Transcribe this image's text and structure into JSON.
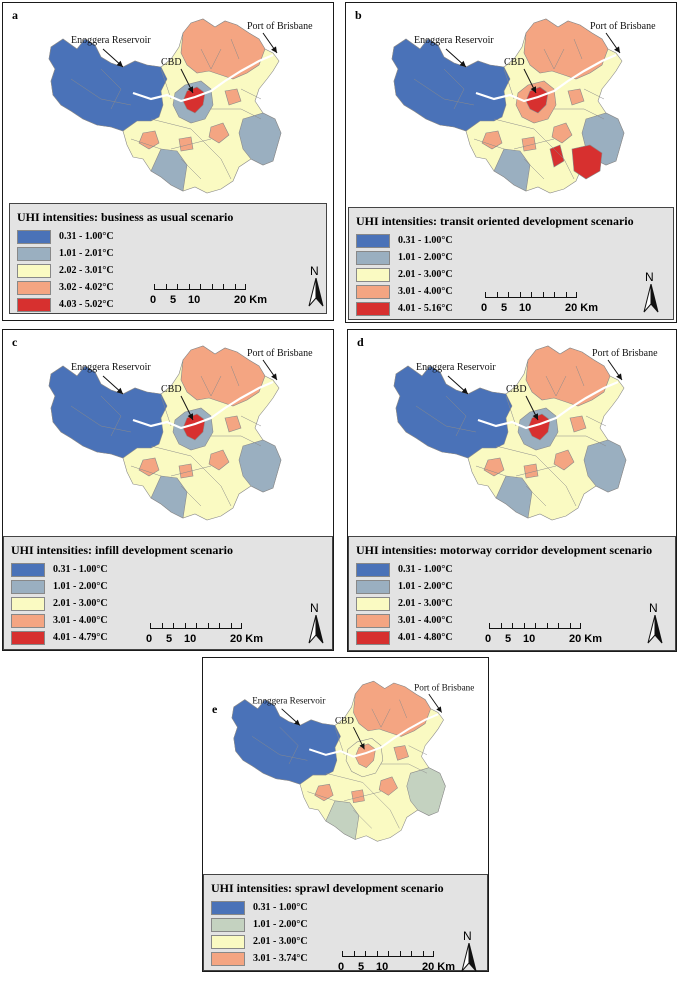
{
  "annotations": {
    "reservoir": "Enoggera Reservoir",
    "cbd": "CBD",
    "port": "Port of Brisbane"
  },
  "scale": {
    "labels": [
      "0",
      "5",
      "10",
      "20 Km"
    ]
  },
  "north_label": "N",
  "colors": {
    "class1": "#4a72b8",
    "class2": "#9aafc0",
    "class2_sprawl": "#c4d2c0",
    "class3": "#fafac2",
    "class4": "#f4a582",
    "class5": "#d7302f",
    "boundary": "#8a8a8a"
  },
  "panels": [
    {
      "letter": "a",
      "title": "UHI intensities: business as usual scenario",
      "legend": [
        {
          "range": "0.31 - 1.00°C",
          "color": "#4a72b8"
        },
        {
          "range": "1.01 - 2.01°C",
          "color": "#9aafc0"
        },
        {
          "range": "2.02 - 3.01°C",
          "color": "#fafac2"
        },
        {
          "range": "3.02 - 4.02°C",
          "color": "#f4a582"
        },
        {
          "range": "4.03 - 5.02°C",
          "color": "#d7302f"
        }
      ]
    },
    {
      "letter": "b",
      "title": "UHI intensities: transit oriented development scenario",
      "legend": [
        {
          "range": "0.31 - 1.00°C",
          "color": "#4a72b8"
        },
        {
          "range": "1.01 - 2.00°C",
          "color": "#9aafc0"
        },
        {
          "range": "2.01 - 3.00°C",
          "color": "#fafac2"
        },
        {
          "range": "3.01 - 4.00°C",
          "color": "#f4a582"
        },
        {
          "range": "4.01 - 5.16°C",
          "color": "#d7302f"
        }
      ]
    },
    {
      "letter": "c",
      "title": "UHI intensities: infill development scenario",
      "legend": [
        {
          "range": "0.31 - 1.00°C",
          "color": "#4a72b8"
        },
        {
          "range": "1.01 - 2.00°C",
          "color": "#9aafc0"
        },
        {
          "range": "2.01 - 3.00°C",
          "color": "#fafac2"
        },
        {
          "range": "3.01 - 4.00°C",
          "color": "#f4a582"
        },
        {
          "range": "4.01 - 4.79°C",
          "color": "#d7302f"
        }
      ]
    },
    {
      "letter": "d",
      "title": "UHI intensities: motorway corridor development scenario",
      "legend": [
        {
          "range": "0.31 - 1.00°C",
          "color": "#4a72b8"
        },
        {
          "range": "1.01 - 2.00°C",
          "color": "#9aafc0"
        },
        {
          "range": "2.01 - 3.00°C",
          "color": "#fafac2"
        },
        {
          "range": "3.01 - 4.00°C",
          "color": "#f4a582"
        },
        {
          "range": "4.01 - 4.80°C",
          "color": "#d7302f"
        }
      ]
    },
    {
      "letter": "e",
      "title": "UHI intensities: sprawl development scenario",
      "legend": [
        {
          "range": "0.31 - 1.00°C",
          "color": "#4a72b8"
        },
        {
          "range": "1.01 - 2.00°C",
          "color": "#c4d2c0"
        },
        {
          "range": "2.01 - 3.00°C",
          "color": "#fafac2"
        },
        {
          "range": "3.01 - 3.74°C",
          "color": "#f4a582"
        }
      ]
    }
  ]
}
